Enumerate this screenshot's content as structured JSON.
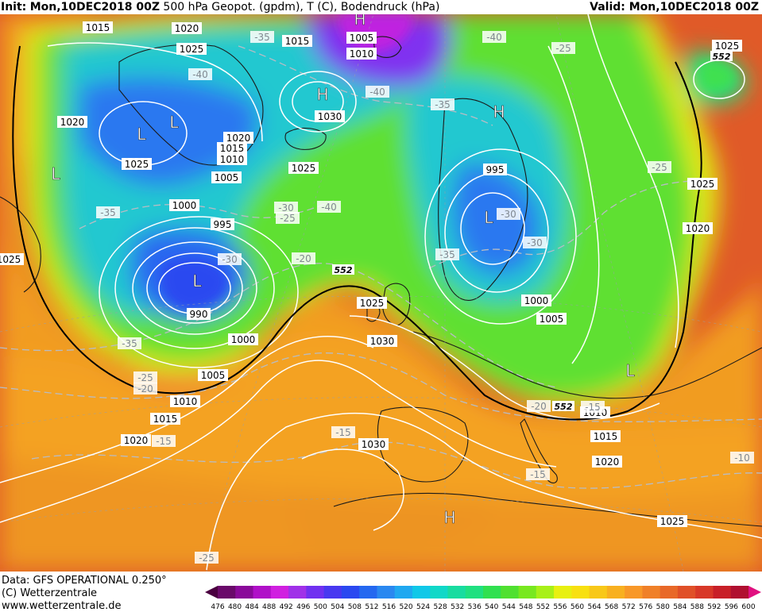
{
  "header": {
    "init_label": "Init:",
    "init_value": "Mon,10DEC2018 00Z",
    "description": "500 hPa Geopot. (gpdm), T (C), Bodendruck (hPa)",
    "valid_label": "Valid:",
    "valid_value": "Mon,10DEC2018 00Z"
  },
  "footer": {
    "data_line": "Data: GFS OPERATIONAL 0.250°",
    "copyright": "(C) Wetterzentrale",
    "website": "www.wetterzentrale.de"
  },
  "colorbar": {
    "ticks": [
      "476",
      "480",
      "484",
      "488",
      "492",
      "496",
      "500",
      "504",
      "508",
      "512",
      "516",
      "520",
      "524",
      "528",
      "532",
      "536",
      "540",
      "544",
      "548",
      "552",
      "556",
      "560",
      "564",
      "568",
      "572",
      "576",
      "580",
      "584",
      "588",
      "592",
      "596",
      "600"
    ],
    "colors": [
      "#4a0040",
      "#6a0a6a",
      "#8a0a9a",
      "#b010c8",
      "#d020e0",
      "#a030e8",
      "#7030f0",
      "#4838f0",
      "#2a48f0",
      "#2468f0",
      "#2a88f0",
      "#20a8f0",
      "#10c8e8",
      "#10d8c8",
      "#18dca0",
      "#20e080",
      "#30e050",
      "#50e030",
      "#78e820",
      "#a8f018",
      "#e8f010",
      "#f8e010",
      "#f8c818",
      "#f8b020",
      "#f89828",
      "#f08028",
      "#e86828",
      "#e05028",
      "#d83828",
      "#c82028",
      "#b01030",
      "#e01080"
    ]
  },
  "map": {
    "pressure_labels": [
      {
        "text": "1015"
      },
      {
        "text": "1020"
      },
      {
        "text": "1025"
      },
      {
        "text": "1015"
      },
      {
        "text": "1005"
      },
      {
        "text": "1010"
      },
      {
        "text": "1025"
      },
      {
        "text": "1020"
      },
      {
        "text": "1030"
      },
      {
        "text": "1020"
      },
      {
        "text": "1015"
      },
      {
        "text": "1010"
      },
      {
        "text": "1005"
      },
      {
        "text": "1025"
      },
      {
        "text": "1025"
      },
      {
        "text": "1000"
      },
      {
        "text": "995"
      },
      {
        "text": "995"
      },
      {
        "text": "1025"
      },
      {
        "text": "1020"
      },
      {
        "text": "1025"
      },
      {
        "text": "1025"
      },
      {
        "text": "990"
      },
      {
        "text": "1000"
      },
      {
        "text": "1000"
      },
      {
        "text": "1005"
      },
      {
        "text": "1030"
      },
      {
        "text": "1005"
      },
      {
        "text": "1010"
      },
      {
        "text": "1015"
      },
      {
        "text": "1020"
      },
      {
        "text": "1010"
      },
      {
        "text": "1030"
      },
      {
        "text": "1015"
      },
      {
        "text": "1020"
      },
      {
        "text": "1025"
      }
    ],
    "temp_labels": [
      {
        "text": "-35"
      },
      {
        "text": "-40"
      },
      {
        "text": "-40"
      },
      {
        "text": "-25"
      },
      {
        "text": "-40"
      },
      {
        "text": "-35"
      },
      {
        "text": "-35"
      },
      {
        "text": "-40"
      },
      {
        "text": "-30"
      },
      {
        "text": "-25"
      },
      {
        "text": "-30"
      },
      {
        "text": "-20"
      },
      {
        "text": "-30"
      },
      {
        "text": "-35"
      },
      {
        "text": "-30"
      },
      {
        "text": "-25"
      },
      {
        "text": "-35"
      },
      {
        "text": "-25"
      },
      {
        "text": "-20"
      },
      {
        "text": "-15"
      },
      {
        "text": "-15"
      },
      {
        "text": "-15"
      },
      {
        "text": "-10"
      },
      {
        "text": "-25"
      },
      {
        "text": "-20"
      },
      {
        "text": "-15"
      }
    ],
    "geopot_labels": [
      {
        "text": "552"
      },
      {
        "text": "552"
      },
      {
        "text": "552"
      }
    ],
    "pressure_centers": [
      {
        "text": "H"
      },
      {
        "text": "H"
      },
      {
        "text": "L"
      },
      {
        "text": "L"
      },
      {
        "text": "H"
      },
      {
        "text": "L"
      },
      {
        "text": "L"
      },
      {
        "text": "L"
      },
      {
        "text": "H"
      },
      {
        "text": "L"
      }
    ]
  }
}
